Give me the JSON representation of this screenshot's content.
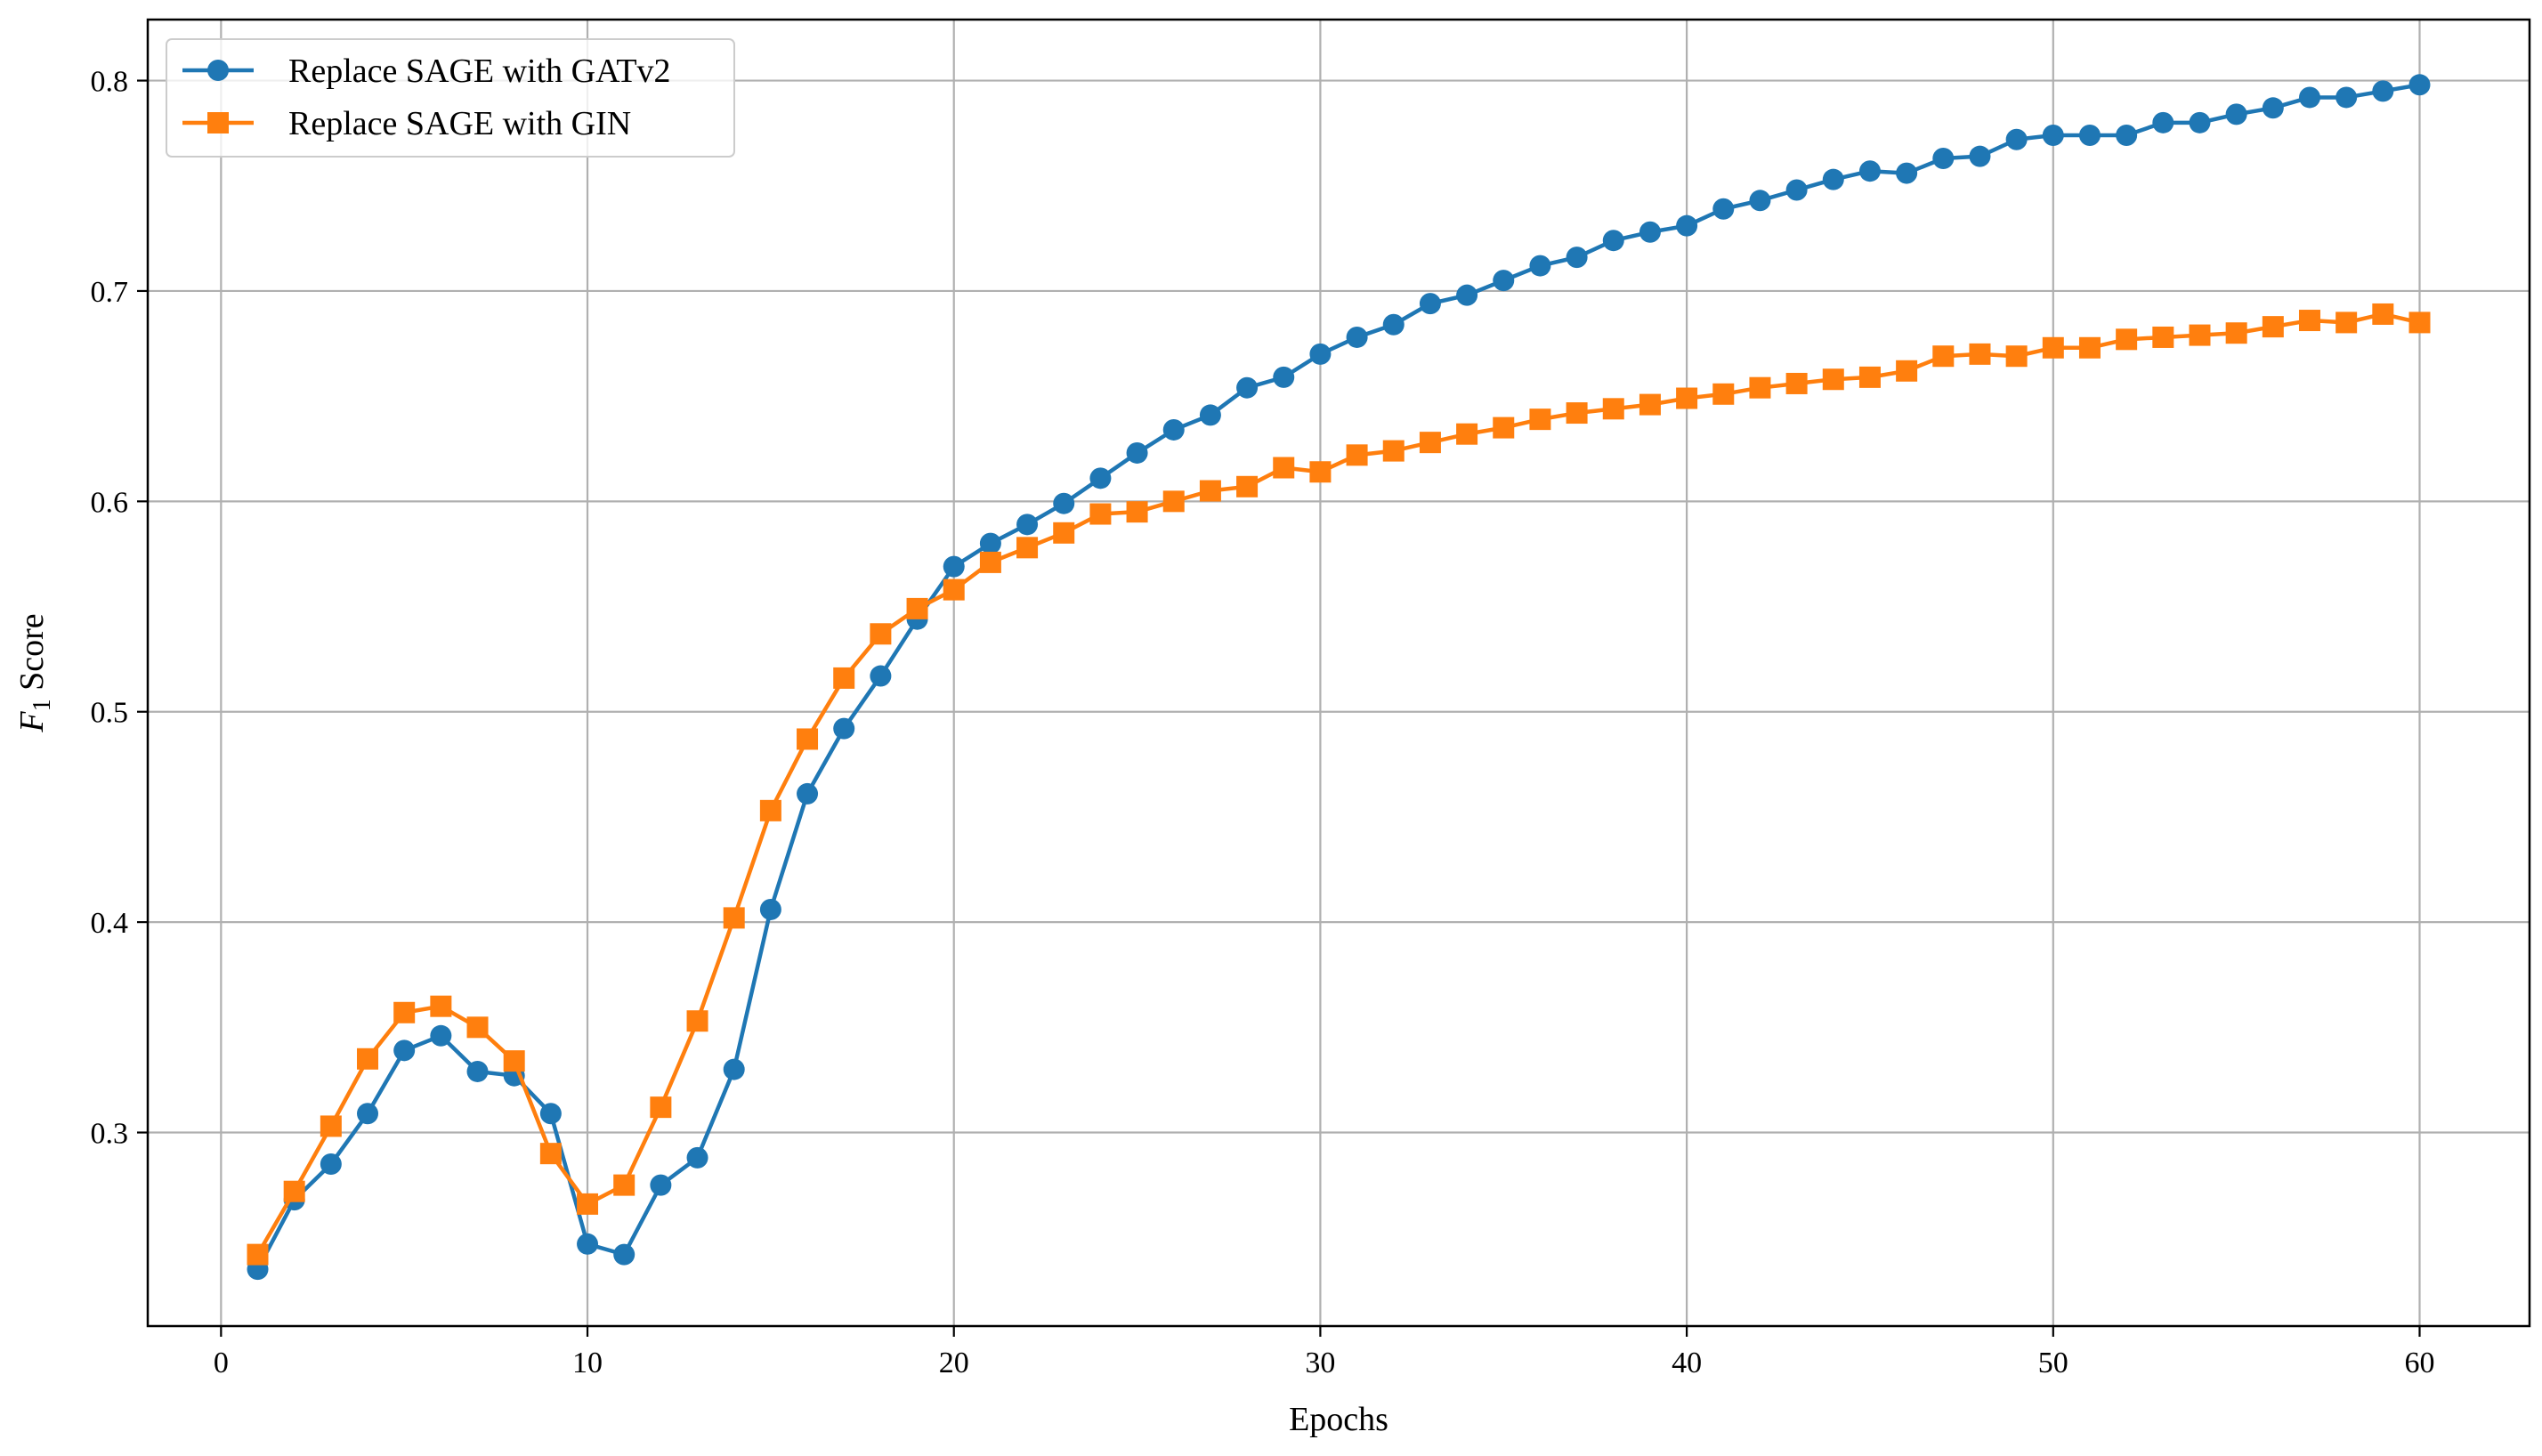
{
  "chart_data": {
    "type": "line",
    "xlabel": "Epochs",
    "ylabel": {
      "main": "F",
      "subscript": "1",
      "suffix": " Score"
    },
    "xlim": [
      -2,
      63
    ],
    "ylim": [
      0.208,
      0.829
    ],
    "xticks": [
      0,
      10,
      20,
      30,
      40,
      50,
      60
    ],
    "yticks": [
      0.3,
      0.4,
      0.5,
      0.6,
      0.7,
      0.8
    ],
    "grid": true,
    "legend_position": "top-left",
    "x": [
      1,
      2,
      3,
      4,
      5,
      6,
      7,
      8,
      9,
      10,
      11,
      12,
      13,
      14,
      15,
      16,
      17,
      18,
      19,
      20,
      21,
      22,
      23,
      24,
      25,
      26,
      27,
      28,
      29,
      30,
      31,
      32,
      33,
      34,
      35,
      36,
      37,
      38,
      39,
      40,
      41,
      42,
      43,
      44,
      45,
      46,
      47,
      48,
      49,
      50,
      51,
      52,
      53,
      54,
      55,
      56,
      57,
      58,
      59,
      60
    ],
    "series": [
      {
        "name": "Replace SAGE with GATv2",
        "color": "#1f77b4",
        "marker": "circle",
        "values": [
          0.235,
          0.268,
          0.285,
          0.309,
          0.339,
          0.346,
          0.329,
          0.327,
          0.309,
          0.247,
          0.242,
          0.275,
          0.288,
          0.33,
          0.406,
          0.461,
          0.492,
          0.517,
          0.544,
          0.569,
          0.58,
          0.589,
          0.599,
          0.611,
          0.623,
          0.634,
          0.641,
          0.654,
          0.659,
          0.67,
          0.678,
          0.684,
          0.694,
          0.698,
          0.705,
          0.712,
          0.716,
          0.724,
          0.728,
          0.731,
          0.739,
          0.743,
          0.748,
          0.753,
          0.757,
          0.756,
          0.763,
          0.764,
          0.772,
          0.774,
          0.774,
          0.774,
          0.78,
          0.78,
          0.784,
          0.787,
          0.792,
          0.792,
          0.795,
          0.798
        ]
      },
      {
        "name": "Replace SAGE with GIN",
        "color": "#ff7f0e",
        "marker": "square",
        "values": [
          0.242,
          0.272,
          0.303,
          0.335,
          0.357,
          0.36,
          0.35,
          0.334,
          0.29,
          0.266,
          0.275,
          0.312,
          0.353,
          0.402,
          0.453,
          0.487,
          0.516,
          0.537,
          0.549,
          0.558,
          0.571,
          0.578,
          0.585,
          0.594,
          0.595,
          0.6,
          0.605,
          0.607,
          0.616,
          0.614,
          0.622,
          0.624,
          0.628,
          0.632,
          0.635,
          0.639,
          0.642,
          0.644,
          0.646,
          0.649,
          0.651,
          0.654,
          0.656,
          0.658,
          0.659,
          0.662,
          0.669,
          0.67,
          0.669,
          0.673,
          0.673,
          0.677,
          0.678,
          0.679,
          0.68,
          0.683,
          0.686,
          0.685,
          0.689,
          0.685
        ]
      }
    ]
  }
}
